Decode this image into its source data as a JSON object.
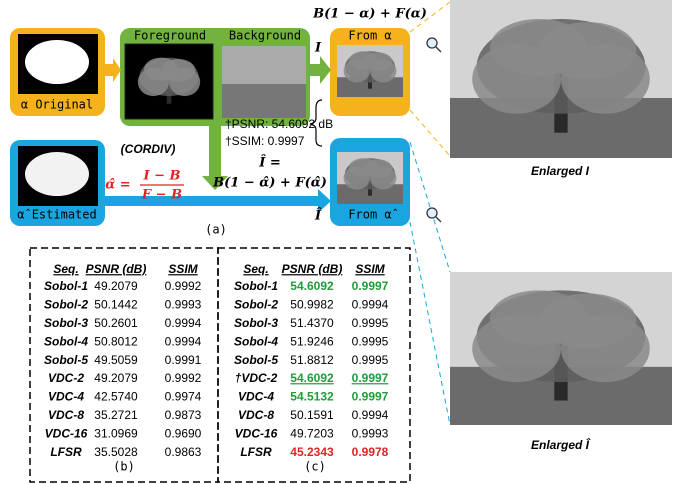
{
  "diagram": {
    "alpha_original": "α Original",
    "alpha_estimated": "α̂ Estimated",
    "foreground": "Foreground",
    "background": "Background",
    "from_alpha": "From α",
    "from_alpha_hat": "From α̂",
    "composite_formula": "B(1 − α) + F(α)",
    "i_symbol": "I",
    "i_hat_symbol": "Î",
    "psnr": "†PSNR: 54.6092 dB",
    "ssim": "†SSIM: 0.9997",
    "cordiv": "(CORDIV)",
    "estimate": {
      "lhs": "α̂ =",
      "numerator": "I − B",
      "denominator": "F − B"
    },
    "reconstruction_lhs": "Î =",
    "reconstruction_rhs": "B(1 − α̂) + F(α̂)",
    "caption": "(a)",
    "enlarged_i": "Enlarged I",
    "enlarged_i_hat": "Enlarged Î"
  },
  "table_b": {
    "header": [
      "Seq.",
      "PSNR (dB)",
      "SSIM"
    ],
    "rows": [
      [
        "Sobol-1",
        "49.2079",
        "0.9992"
      ],
      [
        "Sobol-2",
        "50.1442",
        "0.9993"
      ],
      [
        "Sobol-3",
        "50.2601",
        "0.9994"
      ],
      [
        "Sobol-4",
        "50.8012",
        "0.9994"
      ],
      [
        "Sobol-5",
        "49.5059",
        "0.9991"
      ],
      [
        "VDC-2",
        "49.2079",
        "0.9992"
      ],
      [
        "VDC-4",
        "42.5740",
        "0.9974"
      ],
      [
        "VDC-8",
        "35.2721",
        "0.9873"
      ],
      [
        "VDC-16",
        "31.0969",
        "0.9690"
      ],
      [
        "LFSR",
        "35.5028",
        "0.9863"
      ]
    ],
    "caption": "(b)"
  },
  "table_c": {
    "header": [
      "Seq.",
      "PSNR (dB)",
      "SSIM"
    ],
    "rows": [
      [
        "Sobol-1",
        "54.6092",
        "0.9997"
      ],
      [
        "Sobol-2",
        "50.9982",
        "0.9994"
      ],
      [
        "Sobol-3",
        "51.4370",
        "0.9995"
      ],
      [
        "Sobol-4",
        "51.9246",
        "0.9995"
      ],
      [
        "Sobol-5",
        "51.8812",
        "0.9995"
      ],
      [
        "†VDC-2",
        "54.6092",
        "0.9997"
      ],
      [
        "VDC-4",
        "54.5132",
        "0.9997"
      ],
      [
        "VDC-8",
        "50.1591",
        "0.9994"
      ],
      [
        "VDC-16",
        "49.7203",
        "0.9993"
      ],
      [
        "LFSR",
        "45.2343",
        "0.9978"
      ]
    ],
    "caption": "(c)"
  }
}
